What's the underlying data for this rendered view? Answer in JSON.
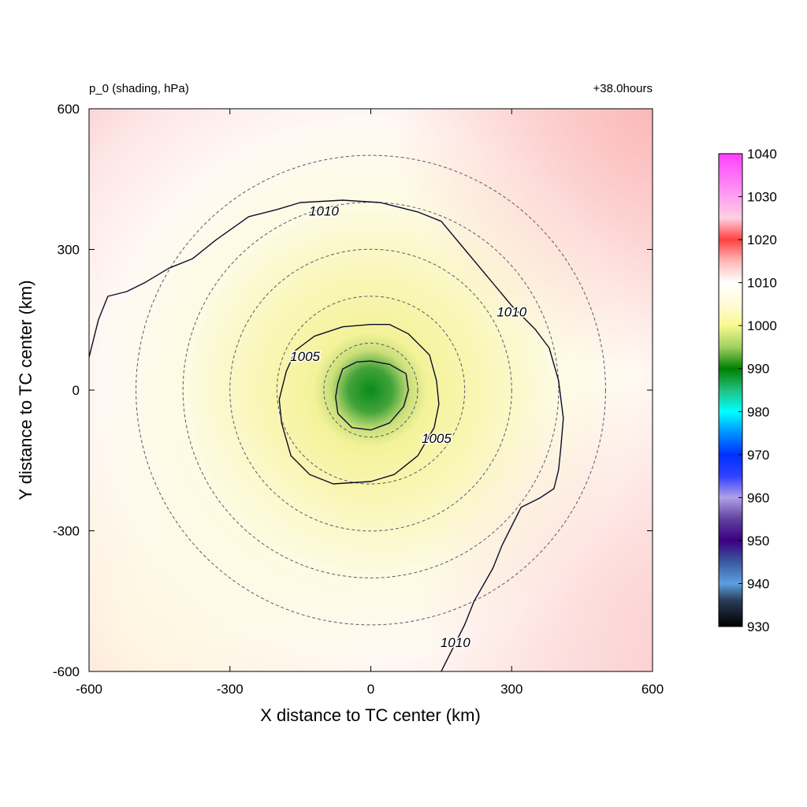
{
  "chart_data": {
    "type": "heatmap",
    "title_left": "p_0 (shading, hPa)",
    "title_right": "+38.0hours",
    "xlabel": "X distance to TC center (km)",
    "ylabel": "Y distance to TC center (km)",
    "xlim": [
      -600,
      600
    ],
    "ylim": [
      -600,
      600
    ],
    "x_ticks": [
      -600,
      -300,
      0,
      300,
      600
    ],
    "y_ticks": [
      -600,
      -300,
      0,
      300,
      600
    ],
    "x_tick_labels": [
      "-600",
      "-300",
      "0",
      "300",
      "600"
    ],
    "y_tick_labels": [
      "-600",
      "-300",
      "0",
      "300",
      "600"
    ],
    "center_pressure_hPa": 990,
    "field_description_values": {
      "at_100km": 1002,
      "at_200km": 1005,
      "at_400km": 1009,
      "far_field_northeast": 1014
    },
    "dashed_range_rings_km": [
      100,
      200,
      300,
      400,
      500
    ],
    "contours": [
      {
        "level": 1005,
        "label": "1005",
        "points": [
          [
            -180,
            40
          ],
          [
            -160,
            85
          ],
          [
            -120,
            115
          ],
          [
            -60,
            135
          ],
          [
            0,
            140
          ],
          [
            40,
            140
          ],
          [
            80,
            120
          ],
          [
            125,
            75
          ],
          [
            140,
            20
          ],
          [
            145,
            -30
          ],
          [
            135,
            -80
          ],
          [
            100,
            -140
          ],
          [
            50,
            -180
          ],
          [
            0,
            -195
          ],
          [
            -80,
            -200
          ],
          [
            -130,
            -180
          ],
          [
            -170,
            -140
          ],
          [
            -190,
            -70
          ],
          [
            -195,
            -20
          ],
          [
            -180,
            40
          ]
        ],
        "label_positions": [
          [
            -140,
            70
          ],
          [
            140,
            -105
          ]
        ]
      },
      {
        "level": 1000,
        "label": "",
        "points": [
          [
            -70,
            15
          ],
          [
            -60,
            45
          ],
          [
            -30,
            60
          ],
          [
            0,
            62
          ],
          [
            40,
            55
          ],
          [
            75,
            35
          ],
          [
            80,
            0
          ],
          [
            70,
            -35
          ],
          [
            40,
            -70
          ],
          [
            0,
            -85
          ],
          [
            -40,
            -80
          ],
          [
            -70,
            -50
          ],
          [
            -75,
            -15
          ],
          [
            -70,
            15
          ]
        ],
        "label_positions": []
      },
      {
        "level": 1010,
        "label": "1010",
        "points": [
          [
            -600,
            70
          ],
          [
            -580,
            150
          ],
          [
            -560,
            200
          ],
          [
            -520,
            210
          ],
          [
            -480,
            230
          ],
          [
            -430,
            260
          ],
          [
            -380,
            280
          ],
          [
            -330,
            320
          ],
          [
            -260,
            370
          ],
          [
            -200,
            385
          ],
          [
            -150,
            400
          ],
          [
            -60,
            405
          ],
          [
            20,
            400
          ],
          [
            100,
            380
          ],
          [
            150,
            360
          ],
          [
            200,
            300
          ],
          [
            250,
            240
          ],
          [
            300,
            180
          ],
          [
            350,
            130
          ],
          [
            380,
            90
          ],
          [
            400,
            20
          ],
          [
            410,
            -60
          ],
          [
            405,
            -120
          ],
          [
            400,
            -170
          ],
          [
            390,
            -210
          ],
          [
            360,
            -230
          ],
          [
            320,
            -250
          ],
          [
            300,
            -290
          ],
          [
            280,
            -330
          ],
          [
            260,
            -380
          ],
          [
            220,
            -450
          ],
          [
            200,
            -500
          ],
          [
            170,
            -560
          ],
          [
            150,
            -600
          ]
        ],
        "label_positions": [
          [
            -100,
            380
          ],
          [
            300,
            165
          ],
          [
            180,
            -540
          ]
        ]
      }
    ],
    "colorbar": {
      "min": 930,
      "max": 1040,
      "tick_values": [
        1040,
        1030,
        1020,
        1010,
        1000,
        990,
        980,
        970,
        960,
        950,
        940,
        930
      ],
      "tick_labels": [
        "1040",
        "1030",
        "1020",
        "1010",
        "1000",
        "990",
        "980",
        "970",
        "960",
        "950",
        "940",
        "930"
      ],
      "stops": [
        {
          "v": 930,
          "color": "#000000"
        },
        {
          "v": 936,
          "color": "#2a3c55"
        },
        {
          "v": 940,
          "color": "#5aa0e0"
        },
        {
          "v": 945,
          "color": "#3a5aa0"
        },
        {
          "v": 950,
          "color": "#3a0080"
        },
        {
          "v": 955,
          "color": "#6040a0"
        },
        {
          "v": 960,
          "color": "#b0a0e8"
        },
        {
          "v": 965,
          "color": "#3040ff"
        },
        {
          "v": 970,
          "color": "#0030ff"
        },
        {
          "v": 975,
          "color": "#0090ff"
        },
        {
          "v": 980,
          "color": "#00ffff"
        },
        {
          "v": 985,
          "color": "#20c080"
        },
        {
          "v": 990,
          "color": "#008000"
        },
        {
          "v": 995,
          "color": "#a0d060"
        },
        {
          "v": 1000,
          "color": "#f8f890"
        },
        {
          "v": 1005,
          "color": "#fffcd8"
        },
        {
          "v": 1010,
          "color": "#ffffff"
        },
        {
          "v": 1015,
          "color": "#ffb8b8"
        },
        {
          "v": 1020,
          "color": "#ff4040"
        },
        {
          "v": 1025,
          "color": "#ffd0e0"
        },
        {
          "v": 1030,
          "color": "#ffa0f0"
        },
        {
          "v": 1040,
          "color": "#ff40ff"
        }
      ]
    }
  }
}
